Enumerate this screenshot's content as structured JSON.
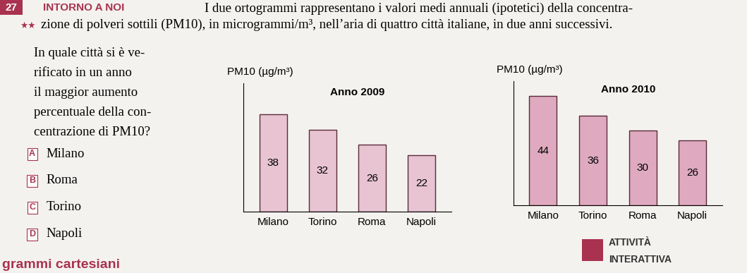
{
  "header": {
    "number": "27",
    "label": "INTORNO A NOI",
    "difficulty": "★★"
  },
  "intro_lines": [
    "I due ortogrammi rappresentano i valori medi annuali (ipotetici) della concentra-",
    "zione di polveri sottili (PM10), in microgrammi/m³, nell’aria di quattro città italiane, in due anni successivi."
  ],
  "question_lines": [
    "In quale città si è ve-",
    "rificato in un anno",
    "il maggior aumento",
    "percentuale della con-",
    "centrazione di PM10?"
  ],
  "options": [
    {
      "letter": "A",
      "text": "Milano"
    },
    {
      "letter": "B",
      "text": "Roma"
    },
    {
      "letter": "C",
      "text": "Torino"
    },
    {
      "letter": "D",
      "text": "Napoli"
    }
  ],
  "chart_data": [
    {
      "type": "bar",
      "title": "Anno 2009",
      "y_label": "PM10 (µg/m³)",
      "categories": [
        "Milano",
        "Torino",
        "Roma",
        "Napoli"
      ],
      "values": [
        38,
        32,
        26,
        22
      ],
      "color": "#e8c3d1",
      "ylim": [
        0,
        50
      ],
      "data_labels": true,
      "tick_labels": "x"
    },
    {
      "type": "bar",
      "title": "Anno 2010",
      "y_label": "PM10 (µg/m³)",
      "categories": [
        "Milano",
        "Torino",
        "Roma",
        "Napoli"
      ],
      "values": [
        44,
        36,
        30,
        26
      ],
      "color": "#dfaabf",
      "ylim": [
        0,
        50
      ],
      "data_labels": true,
      "tick_labels": "x"
    }
  ],
  "footer": {
    "activity": [
      "ATTIVITÀ",
      "INTERATTIVA"
    ],
    "section": "grammi cartesiani"
  }
}
